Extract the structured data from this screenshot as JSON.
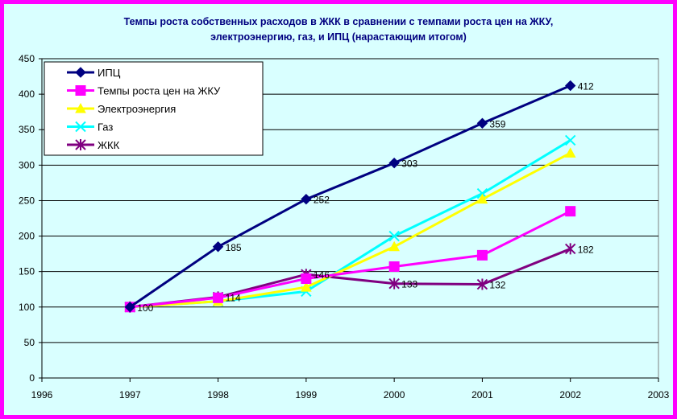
{
  "chart_data": {
    "type": "line",
    "title_line1": "Темпы роста собственных расходов в ЖКК в сравнении с темпами роста цен на ЖКУ,",
    "title_line2": "электроэнергию, газ, и ИПЦ (нарастающим итогом)",
    "xlim": [
      1996,
      2003
    ],
    "ylim": [
      0,
      450
    ],
    "x_ticks": [
      1996,
      1997,
      1998,
      1999,
      2000,
      2001,
      2002,
      2003
    ],
    "y_ticks": [
      0,
      50,
      100,
      150,
      200,
      250,
      300,
      350,
      400,
      450
    ],
    "grid": "horizontal",
    "legend_position": "top-left",
    "series": [
      {
        "name": "ИПЦ",
        "color": "#000080",
        "marker": "diamond",
        "x": [
          1997,
          1998,
          1999,
          2000,
          2001,
          2002
        ],
        "values": [
          100,
          185,
          252,
          303,
          359,
          412
        ],
        "data_labels": [
          "100",
          "185",
          "252",
          "303",
          "359",
          "412"
        ]
      },
      {
        "name": "Темпы роста цен на ЖКУ",
        "color": "#ff00ff",
        "marker": "square",
        "x": [
          1997,
          1998,
          1999,
          2000,
          2001,
          2002
        ],
        "values": [
          100,
          113,
          140,
          157,
          173,
          235
        ]
      },
      {
        "name": "Электроэнергия",
        "color": "#ffff00",
        "marker": "triangle",
        "x": [
          1997,
          1998,
          1999,
          2000,
          2001,
          2002
        ],
        "values": [
          100,
          108,
          128,
          185,
          252,
          317
        ]
      },
      {
        "name": "Газ",
        "color": "#00ffff",
        "marker": "x",
        "x": [
          1997,
          1998,
          1999,
          2000,
          2001,
          2002
        ],
        "values": [
          100,
          108,
          122,
          200,
          260,
          335
        ]
      },
      {
        "name": "ЖКК",
        "color": "#800080",
        "marker": "star",
        "x": [
          1997,
          1998,
          1999,
          2000,
          2001,
          2002
        ],
        "values": [
          100,
          114,
          146,
          133,
          132,
          182
        ],
        "data_labels": [
          "",
          "114",
          "146",
          "133",
          "132",
          "182"
        ]
      }
    ]
  }
}
